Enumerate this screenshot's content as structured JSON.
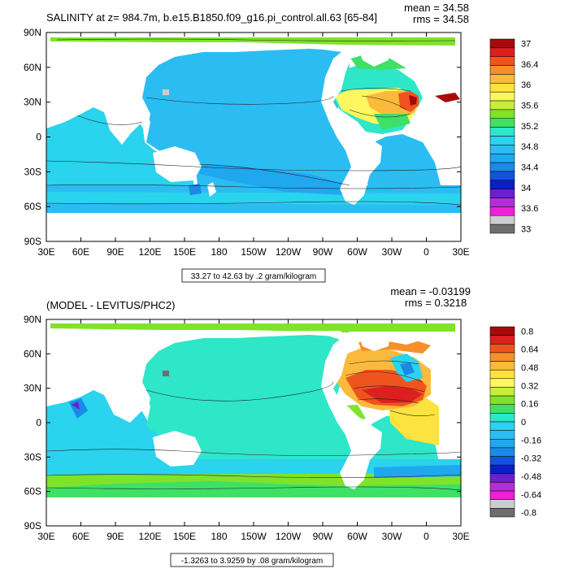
{
  "panels": [
    {
      "title": "SALINITY at z= 984.7m, b.e15.B1850.f09_g16.pi_control.all.63 [65-84]",
      "mean_text": "mean = 34.58",
      "rms_text": "rms = 34.58",
      "range_text": "33.27 to 42.63 by .2 gram/kilogram",
      "kind": "abs"
    },
    {
      "title": "(MODEL - LEVITUS/PHC2)",
      "mean_text": "mean = -0.03199",
      "rms_text": "rms = 0.3218",
      "range_text": "-1.3263 to 3.9259 by .08 gram/kilogram",
      "kind": "diff"
    }
  ],
  "chart_data": [
    {
      "type": "heatmap",
      "title": "SALINITY at z= 984.7m, b.e15.B1850.f09_g16.pi_control.all.63 [65-84]",
      "x_ticks": [
        "30E",
        "60E",
        "90E",
        "120E",
        "150E",
        "180",
        "150W",
        "120W",
        "90W",
        "60W",
        "30W",
        "0",
        "30E"
      ],
      "y_ticks": [
        "90N",
        "60N",
        "30N",
        "0",
        "30S",
        "60S",
        "90S"
      ],
      "xlim": [
        30,
        390
      ],
      "ylim": [
        -90,
        90
      ],
      "colorbar": {
        "labels": [
          "37",
          "36.4",
          "36",
          "35.6",
          "35.2",
          "34.8",
          "34.4",
          "34",
          "33.6",
          "33"
        ],
        "colors": [
          "#a80a0a",
          "#dd1f1f",
          "#f0541e",
          "#f6902b",
          "#fbba3c",
          "#fce33d",
          "#fff75f",
          "#c8ed3a",
          "#7fe32a",
          "#3ee066",
          "#2ee6c8",
          "#2ad3ee",
          "#2bbdf2",
          "#1fa8f0",
          "#1b89e8",
          "#1253dd",
          "#0a1fc8",
          "#6a1fd0",
          "#b22fd8",
          "#f01fd8",
          "#cccccc",
          "#6e6e6e"
        ]
      },
      "series": []
    },
    {
      "type": "heatmap",
      "title": "(MODEL - LEVITUS/PHC2)",
      "x_ticks": [
        "30E",
        "60E",
        "90E",
        "120E",
        "150E",
        "180",
        "150W",
        "120W",
        "90W",
        "60W",
        "30W",
        "0",
        "30E"
      ],
      "y_ticks": [
        "90N",
        "60N",
        "30N",
        "0",
        "30S",
        "60S",
        "90S"
      ],
      "xlim": [
        30,
        390
      ],
      "ylim": [
        -90,
        90
      ],
      "colorbar": {
        "labels": [
          "0.8",
          "0.64",
          "0.48",
          "0.32",
          "0.16",
          "0",
          "-0.16",
          "-0.32",
          "-0.48",
          "-0.64",
          "-0.8"
        ],
        "colors": [
          "#a80a0a",
          "#dd1f1f",
          "#f0541e",
          "#f6902b",
          "#fbba3c",
          "#fce33d",
          "#fff75f",
          "#c8ed3a",
          "#7fe32a",
          "#3ee066",
          "#2ee6c8",
          "#2ad3ee",
          "#2bbdf2",
          "#1fa8f0",
          "#1b89e8",
          "#1253dd",
          "#0a1fc8",
          "#6a1fd0",
          "#b22fd8",
          "#f01fd8",
          "#cccccc",
          "#6e6e6e"
        ]
      },
      "series": []
    }
  ]
}
